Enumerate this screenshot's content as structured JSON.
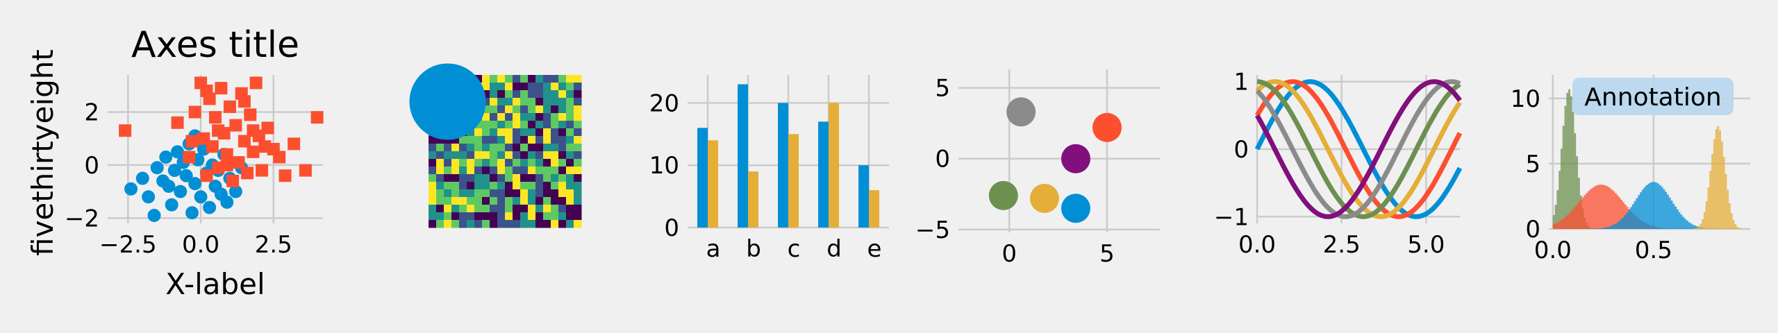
{
  "figure": {
    "style": "fivethirtyeight",
    "background": "#f0f0f0",
    "grid": true
  },
  "chart_data": [
    {
      "type": "scatter",
      "title": "Axes title",
      "xlabel": "X-label",
      "ylabel": "fivethirtyeight",
      "xlim": [
        -3.2,
        4.2
      ],
      "ylim": [
        -2.2,
        3.4
      ],
      "xticks": [
        -2.5,
        0.0,
        2.5
      ],
      "xtick_labels": [
        "−2.5",
        "0.0",
        "2.5"
      ],
      "yticks": [
        -2,
        0,
        2
      ],
      "ytick_labels": [
        "−2",
        "0",
        "2"
      ],
      "series": [
        {
          "marker": "circle",
          "color": "#008fd5",
          "points": [
            [
              -2.4,
              -0.9
            ],
            [
              -2.0,
              -0.5
            ],
            [
              -1.8,
              -1.2
            ],
            [
              -1.5,
              -0.1
            ],
            [
              -1.3,
              -0.6
            ],
            [
              -1.2,
              0.3
            ],
            [
              -1.0,
              -1.5
            ],
            [
              -0.9,
              -0.2
            ],
            [
              -0.8,
              0.5
            ],
            [
              -0.7,
              -1.0
            ],
            [
              -0.6,
              0.1
            ],
            [
              -0.5,
              -0.4
            ],
            [
              -0.4,
              0.8
            ],
            [
              -0.3,
              -1.8
            ],
            [
              -0.2,
              -0.7
            ],
            [
              -0.1,
              0.2
            ],
            [
              0.0,
              -1.2
            ],
            [
              0.1,
              0.6
            ],
            [
              0.2,
              -0.3
            ],
            [
              0.3,
              -1.6
            ],
            [
              0.4,
              0.0
            ],
            [
              0.5,
              -0.8
            ],
            [
              0.6,
              -0.2
            ],
            [
              0.7,
              -1.1
            ],
            [
              0.8,
              0.4
            ],
            [
              1.0,
              -0.5
            ],
            [
              1.2,
              -1.0
            ],
            [
              1.4,
              -0.1
            ],
            [
              -1.6,
              -1.9
            ],
            [
              -0.2,
              1.1
            ],
            [
              -1.1,
              -0.8
            ],
            [
              0.9,
              -1.4
            ]
          ]
        },
        {
          "marker": "square",
          "color": "#fc4f30",
          "points": [
            [
              -2.6,
              1.3
            ],
            [
              -0.8,
              1.6
            ],
            [
              -0.4,
              0.3
            ],
            [
              -0.2,
              2.0
            ],
            [
              0.0,
              3.1
            ],
            [
              0.1,
              1.0
            ],
            [
              0.2,
              -0.4
            ],
            [
              0.3,
              2.5
            ],
            [
              0.4,
              0.7
            ],
            [
              0.5,
              1.8
            ],
            [
              0.6,
              -0.1
            ],
            [
              0.7,
              2.9
            ],
            [
              0.8,
              1.2
            ],
            [
              0.9,
              0.4
            ],
            [
              1.0,
              2.2
            ],
            [
              1.1,
              -0.6
            ],
            [
              1.2,
              1.5
            ],
            [
              1.3,
              0.1
            ],
            [
              1.4,
              2.7
            ],
            [
              1.5,
              0.9
            ],
            [
              1.6,
              -0.3
            ],
            [
              1.7,
              1.9
            ],
            [
              1.8,
              0.5
            ],
            [
              1.9,
              3.1
            ],
            [
              2.0,
              1.1
            ],
            [
              2.1,
              -0.2
            ],
            [
              2.3,
              1.4
            ],
            [
              2.5,
              0.6
            ],
            [
              2.7,
              0.3
            ],
            [
              2.9,
              -0.4
            ],
            [
              3.2,
              0.8
            ],
            [
              3.6,
              -0.2
            ],
            [
              4.0,
              1.8
            ],
            [
              0.2,
              2.8
            ],
            [
              1.5,
              2.4
            ],
            [
              0.9,
              0.0
            ],
            [
              1.8,
              1.3
            ],
            [
              2.2,
              0.7
            ],
            [
              -0.3,
              0.9
            ],
            [
              0.6,
              1.3
            ]
          ]
        }
      ]
    },
    {
      "type": "heatmap",
      "rows": 20,
      "cols": 20,
      "colormap": [
        "#440154",
        "#3b528b",
        "#21918c",
        "#5ec962",
        "#fde725"
      ],
      "circle": {
        "cx": 2.5,
        "cy": 3.5,
        "r": 5,
        "color": "#008fd5"
      }
    },
    {
      "type": "bar",
      "categories": [
        "a",
        "b",
        "c",
        "d",
        "e"
      ],
      "ylim": [
        0,
        24.5
      ],
      "yticks": [
        0,
        10,
        20
      ],
      "ytick_labels": [
        "0",
        "10",
        "20"
      ],
      "series": [
        {
          "color": "#008fd5",
          "values": [
            16,
            23,
            20,
            17,
            10
          ]
        },
        {
          "color": "#e5ae38",
          "values": [
            14,
            9,
            15,
            20,
            6
          ]
        }
      ]
    },
    {
      "type": "scatter",
      "xlim": [
        -2.6,
        7.7
      ],
      "ylim": [
        -5.2,
        6.3
      ],
      "xticks": [
        0,
        5
      ],
      "xtick_labels": [
        "0",
        "5"
      ],
      "yticks": [
        -5,
        0,
        5
      ],
      "ytick_labels": [
        "−5",
        "0",
        "5"
      ],
      "points": [
        {
          "x": 0.6,
          "y": 3.3,
          "color": "#8b8b8b"
        },
        {
          "x": 5.0,
          "y": 2.2,
          "color": "#fc4f30"
        },
        {
          "x": 3.4,
          "y": 0.0,
          "color": "#810f7c"
        },
        {
          "x": -0.3,
          "y": -2.6,
          "color": "#6d904f"
        },
        {
          "x": 1.8,
          "y": -2.8,
          "color": "#e5ae38"
        },
        {
          "x": 3.4,
          "y": -3.5,
          "color": "#008fd5"
        }
      ]
    },
    {
      "type": "line",
      "xlim": [
        0,
        6.0
      ],
      "ylim": [
        -1.1,
        1.1
      ],
      "xticks": [
        0.0,
        2.5,
        5.0
      ],
      "xtick_labels": [
        "0.0",
        "2.5",
        "5.0"
      ],
      "yticks": [
        -1,
        0,
        1
      ],
      "ytick_labels": [
        "−1",
        "0",
        "1"
      ],
      "series": [
        {
          "color": "#008fd5",
          "phase": 0.0
        },
        {
          "color": "#fc4f30",
          "phase": 0.5236
        },
        {
          "color": "#e5ae38",
          "phase": 1.0472
        },
        {
          "color": "#6d904f",
          "phase": 1.5708
        },
        {
          "color": "#8b8b8b",
          "phase": 2.0944
        },
        {
          "color": "#810f7c",
          "phase": 2.618
        }
      ]
    },
    {
      "type": "area",
      "xlim": [
        -0.02,
        0.98
      ],
      "ylim": [
        0,
        11.8
      ],
      "xticks": [
        0.0,
        0.5
      ],
      "xtick_labels": [
        "0.0",
        "0.5"
      ],
      "yticks": [
        0,
        5,
        10
      ],
      "ytick_labels": [
        "0",
        "5",
        "10"
      ],
      "annotation": "Annotation",
      "series": [
        {
          "color": "#6d904f",
          "mean": 0.08,
          "sd": 0.035,
          "peak": 10.7
        },
        {
          "color": "#fc4f30",
          "mean": 0.24,
          "sd": 0.11,
          "peak": 3.4
        },
        {
          "color": "#008fd5",
          "mean": 0.5,
          "sd": 0.09,
          "peak": 3.6
        },
        {
          "color": "#e5ae38",
          "mean": 0.82,
          "sd": 0.035,
          "peak": 7.9
        }
      ]
    }
  ]
}
